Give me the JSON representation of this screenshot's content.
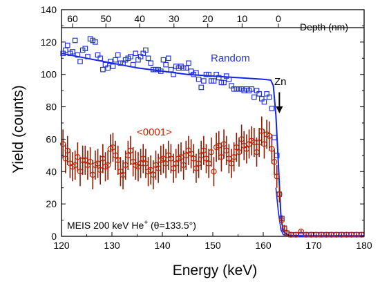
{
  "chart_data": {
    "type": "scatter",
    "xlabel": "Energy (keV)",
    "ylabel": "Yield (counts)",
    "xlim": [
      120,
      180
    ],
    "ylim": [
      0,
      140
    ],
    "x_ticks": [
      "120",
      "130",
      "140",
      "150",
      "160",
      "170",
      "180"
    ],
    "y_ticks": [
      "0",
      "20",
      "40",
      "60",
      "80",
      "100",
      "120",
      "140"
    ],
    "top_axis": {
      "label": "Depth (nm)",
      "ticks": [
        {
          "label": "60",
          "energy": 122.2
        },
        {
          "label": "50",
          "energy": 128.8
        },
        {
          "label": "40",
          "energy": 135.5
        },
        {
          "label": "30",
          "energy": 142.3
        },
        {
          "label": "20",
          "energy": 149.0
        },
        {
          "label": "10",
          "energy": 155.8
        },
        {
          "label": "0",
          "energy": 163.0
        }
      ]
    },
    "series": [
      {
        "name": "Random",
        "color": "#2233dd",
        "marker": "square",
        "points": [
          [
            120.3,
            113
          ],
          [
            120.8,
            115
          ],
          [
            121.2,
            118
          ],
          [
            121.7,
            113
          ],
          [
            122.2,
            114
          ],
          [
            122.7,
            121
          ],
          [
            123.2,
            112
          ],
          [
            123.7,
            108
          ],
          [
            124.2,
            115
          ],
          [
            124.7,
            116
          ],
          [
            125.2,
            111
          ],
          [
            125.7,
            122
          ],
          [
            126.2,
            121
          ],
          [
            126.7,
            120
          ],
          [
            127.2,
            112
          ],
          [
            127.7,
            110
          ],
          [
            128.2,
            103
          ],
          [
            128.7,
            106
          ],
          [
            129.2,
            104
          ],
          [
            129.7,
            108
          ],
          [
            130.2,
            105
          ],
          [
            130.7,
            109
          ],
          [
            131.2,
            112
          ],
          [
            131.7,
            107
          ],
          [
            132.2,
            107
          ],
          [
            132.7,
            109
          ],
          [
            133.2,
            110
          ],
          [
            133.7,
            111
          ],
          [
            134.2,
            106
          ],
          [
            134.7,
            113
          ],
          [
            135.2,
            109
          ],
          [
            135.7,
            111
          ],
          [
            136.2,
            113
          ],
          [
            136.7,
            115
          ],
          [
            137.2,
            110
          ],
          [
            137.7,
            107
          ],
          [
            138.2,
            103
          ],
          [
            138.7,
            103
          ],
          [
            139.2,
            103
          ],
          [
            139.7,
            102
          ],
          [
            140.2,
            109
          ],
          [
            140.7,
            106
          ],
          [
            141.2,
            110
          ],
          [
            141.7,
            103
          ],
          [
            142.2,
            100
          ],
          [
            142.7,
            105
          ],
          [
            143.2,
            104
          ],
          [
            143.7,
            105
          ],
          [
            144.2,
            104
          ],
          [
            144.7,
            104
          ],
          [
            145.2,
            107
          ],
          [
            145.7,
            102
          ],
          [
            146.2,
            100
          ],
          [
            146.7,
            101
          ],
          [
            147.2,
            97
          ],
          [
            147.7,
            92
          ],
          [
            148.2,
            96
          ],
          [
            148.7,
            100
          ],
          [
            149.2,
            100
          ],
          [
            149.7,
            96
          ],
          [
            150.2,
            96
          ],
          [
            150.7,
            100
          ],
          [
            151.2,
            98
          ],
          [
            151.7,
            95
          ],
          [
            152.2,
            95
          ],
          [
            152.7,
            99
          ],
          [
            153.2,
            97
          ],
          [
            153.7,
            93
          ],
          [
            154.2,
            91
          ],
          [
            154.7,
            91
          ],
          [
            155.2,
            91
          ],
          [
            155.7,
            91
          ],
          [
            156.2,
            90
          ],
          [
            156.7,
            91
          ],
          [
            157.2,
            90
          ],
          [
            157.7,
            91
          ],
          [
            158.2,
            86
          ],
          [
            158.7,
            90
          ],
          [
            159.2,
            88
          ],
          [
            159.7,
            85
          ],
          [
            160.2,
            83
          ],
          [
            160.7,
            88
          ],
          [
            161.2,
            86
          ],
          [
            161.7,
            79
          ],
          [
            162.2,
            61
          ],
          [
            162.7,
            50
          ],
          [
            163.2,
            26
          ],
          [
            163.7,
            11
          ],
          [
            164.2,
            5
          ],
          [
            164.7,
            2
          ],
          [
            165.5,
            1
          ],
          [
            166.5,
            1
          ],
          [
            167.5,
            1
          ],
          [
            168.5,
            1
          ],
          [
            169.5,
            1
          ],
          [
            170.5,
            1
          ],
          [
            171.5,
            1
          ],
          [
            172.5,
            1
          ],
          [
            173.5,
            1
          ],
          [
            174.5,
            1
          ],
          [
            175.5,
            1
          ],
          [
            176.5,
            1
          ],
          [
            177.5,
            1
          ],
          [
            178.5,
            1
          ],
          [
            179.5,
            1
          ]
        ]
      },
      {
        "name": "<0001>",
        "color": "#cc2200",
        "errorbar_color": "#8b1a00",
        "marker": "circle",
        "points": [
          [
            120.3,
            57,
            9
          ],
          [
            120.8,
            48,
            9
          ],
          [
            121.2,
            53,
            9
          ],
          [
            121.7,
            45,
            9
          ],
          [
            122.2,
            43,
            9
          ],
          [
            122.7,
            44,
            9
          ],
          [
            123.2,
            49,
            9
          ],
          [
            123.7,
            40,
            9
          ],
          [
            124.2,
            47,
            9
          ],
          [
            124.7,
            47,
            9
          ],
          [
            125.2,
            44,
            9
          ],
          [
            125.7,
            46,
            9
          ],
          [
            126.2,
            38,
            9
          ],
          [
            126.7,
            44,
            9
          ],
          [
            127.2,
            45,
            9
          ],
          [
            127.7,
            41,
            9
          ],
          [
            128.2,
            48,
            9
          ],
          [
            128.7,
            43,
            9
          ],
          [
            129.2,
            44,
            9
          ],
          [
            129.7,
            54,
            9
          ],
          [
            130.2,
            55,
            9
          ],
          [
            130.7,
            50,
            9
          ],
          [
            131.2,
            47,
            9
          ],
          [
            131.7,
            40,
            9
          ],
          [
            132.2,
            38,
            9
          ],
          [
            132.7,
            44,
            9
          ],
          [
            133.2,
            50,
            9
          ],
          [
            133.7,
            53,
            9
          ],
          [
            134.2,
            46,
            9
          ],
          [
            134.7,
            44,
            9
          ],
          [
            135.2,
            43,
            9
          ],
          [
            135.7,
            45,
            9
          ],
          [
            136.2,
            48,
            9
          ],
          [
            136.7,
            45,
            9
          ],
          [
            137.2,
            40,
            9
          ],
          [
            137.7,
            41,
            9
          ],
          [
            138.2,
            38,
            9
          ],
          [
            138.7,
            44,
            9
          ],
          [
            139.2,
            42,
            9
          ],
          [
            139.7,
            47,
            9
          ],
          [
            140.2,
            48,
            9
          ],
          [
            140.7,
            45,
            9
          ],
          [
            141.2,
            50,
            9
          ],
          [
            141.7,
            48,
            9
          ],
          [
            142.2,
            42,
            9
          ],
          [
            142.7,
            45,
            9
          ],
          [
            143.2,
            48,
            9
          ],
          [
            143.7,
            49,
            9
          ],
          [
            144.2,
            44,
            9
          ],
          [
            144.7,
            50,
            9
          ],
          [
            145.2,
            53,
            9
          ],
          [
            145.7,
            51,
            9
          ],
          [
            146.2,
            48,
            9
          ],
          [
            146.7,
            42,
            9
          ],
          [
            147.2,
            45,
            9
          ],
          [
            147.7,
            50,
            9
          ],
          [
            148.2,
            53,
            9
          ],
          [
            148.7,
            48,
            9
          ],
          [
            149.2,
            45,
            9
          ],
          [
            149.7,
            52,
            9
          ],
          [
            150.2,
            40,
            9
          ],
          [
            150.7,
            55,
            9
          ],
          [
            151.2,
            56,
            9
          ],
          [
            151.7,
            49,
            9
          ],
          [
            152.2,
            57,
            9
          ],
          [
            152.7,
            53,
            9
          ],
          [
            153.2,
            48,
            9
          ],
          [
            153.7,
            45,
            9
          ],
          [
            154.2,
            49,
            9
          ],
          [
            154.7,
            55,
            9
          ],
          [
            155.2,
            52,
            9
          ],
          [
            155.7,
            60,
            9
          ],
          [
            156.2,
            56,
            9
          ],
          [
            156.7,
            54,
            9
          ],
          [
            157.2,
            57,
            9
          ],
          [
            157.7,
            59,
            9
          ],
          [
            158.2,
            58,
            9
          ],
          [
            158.7,
            52,
            9
          ],
          [
            159.2,
            58,
            9
          ],
          [
            159.7,
            65,
            9
          ],
          [
            160.2,
            57,
            9
          ],
          [
            160.7,
            63,
            9
          ],
          [
            161.2,
            62,
            9
          ],
          [
            161.7,
            54,
            9
          ],
          [
            162.2,
            46,
            8
          ],
          [
            162.7,
            37,
            7
          ],
          [
            163.2,
            26,
            5
          ],
          [
            163.7,
            10,
            3
          ],
          [
            164.2,
            5,
            2
          ],
          [
            164.7,
            2,
            2
          ],
          [
            165.5,
            1,
            1
          ],
          [
            166.5,
            1,
            1
          ],
          [
            167.5,
            3,
            1
          ],
          [
            168.5,
            1,
            1
          ],
          [
            169.5,
            1,
            1
          ],
          [
            170.5,
            1,
            1
          ],
          [
            171.5,
            1,
            1
          ],
          [
            172.5,
            1,
            1
          ],
          [
            173.5,
            1,
            1
          ],
          [
            174.5,
            1,
            1
          ],
          [
            175.5,
            1,
            1
          ],
          [
            176.5,
            1,
            1
          ],
          [
            177.5,
            1,
            1
          ],
          [
            178.5,
            1,
            1
          ],
          [
            179.5,
            1,
            1
          ]
        ]
      }
    ],
    "fit_curve": {
      "color": "#1122ee",
      "points": [
        [
          120,
          113
        ],
        [
          125,
          110
        ],
        [
          130,
          107
        ],
        [
          135,
          104
        ],
        [
          140,
          102
        ],
        [
          145,
          100
        ],
        [
          150,
          99
        ],
        [
          155,
          98
        ],
        [
          160,
          97
        ],
        [
          161.5,
          96.5
        ],
        [
          162,
          93
        ],
        [
          162.5,
          75
        ],
        [
          163,
          45
        ],
        [
          163.5,
          12
        ],
        [
          164,
          3
        ],
        [
          165,
          0.5
        ],
        [
          168,
          0.3
        ],
        [
          180,
          0.3
        ]
      ]
    },
    "fit_curve_aligned": {
      "color": "#1122ee",
      "points": [
        [
          162.5,
          30
        ],
        [
          163,
          15
        ],
        [
          163.5,
          4
        ],
        [
          164,
          1
        ],
        [
          166,
          0.3
        ],
        [
          180,
          0.3
        ]
      ]
    },
    "annotations": {
      "random_label": "Random",
      "channel_label": "<0001>",
      "zn_label": "Zn",
      "zn_arrow_energy": 163.2,
      "zn_arrow_from": 89,
      "zn_arrow_to": 76,
      "zn_arrow_color": "#000000",
      "info_prefix": "MEIS 200 keV He",
      "info_sup": "+",
      "info_suffix": " (θ=133.5°)"
    }
  }
}
